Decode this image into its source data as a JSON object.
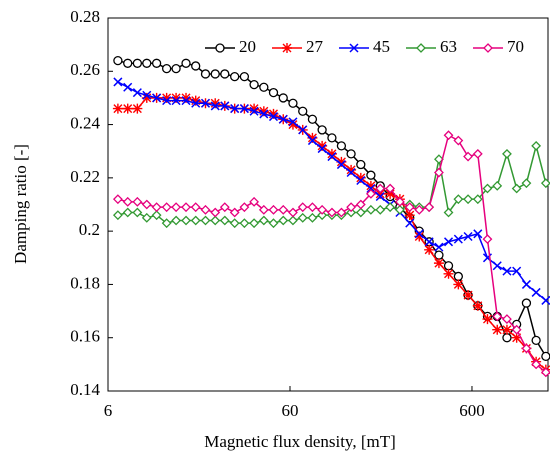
{
  "chart_data": {
    "type": "line",
    "xlabel": "Magnetic flux density, [mT]",
    "ylabel": "Damping ratio [-]",
    "xscale": "log",
    "xlim": [
      6,
      1570
    ],
    "xticks": [
      6,
      60,
      600
    ],
    "ylim": [
      0.14,
      0.28
    ],
    "yticks": [
      0.14,
      0.16,
      0.18,
      0.2,
      0.22,
      0.24,
      0.26,
      0.28
    ],
    "legend": "top",
    "x": [
      6.8,
      7.7,
      8.7,
      9.8,
      11.1,
      12.6,
      14.2,
      16.1,
      18.2,
      20.6,
      23.3,
      26.3,
      29.8,
      33.7,
      38.1,
      43.1,
      48.7,
      55.1,
      62.3,
      70.5,
      79.7,
      90.1,
      102,
      115,
      130,
      147,
      167,
      188,
      213,
      241,
      273,
      308,
      349,
      395,
      446,
      505,
      571,
      646,
      730,
      826,
      934,
      1056,
      1195,
      1351,
      1528
    ],
    "series": [
      {
        "name": "20",
        "color": "#000000",
        "marker": "circle",
        "values": [
          0.264,
          0.263,
          0.263,
          0.263,
          0.263,
          0.261,
          0.261,
          0.263,
          0.262,
          0.259,
          0.259,
          0.259,
          0.258,
          0.258,
          0.255,
          0.254,
          0.252,
          0.25,
          0.248,
          0.245,
          0.242,
          0.238,
          0.235,
          0.232,
          0.229,
          0.225,
          0.221,
          0.217,
          0.213,
          0.209,
          0.205,
          0.2,
          0.196,
          0.191,
          0.187,
          0.183,
          0.176,
          0.172,
          0.168,
          0.168,
          0.16,
          0.165,
          0.173,
          0.159,
          0.153
        ]
      },
      {
        "name": "27",
        "color": "#ff0000",
        "marker": "star",
        "values": [
          0.246,
          0.246,
          0.246,
          0.25,
          0.25,
          0.25,
          0.25,
          0.25,
          0.249,
          0.248,
          0.248,
          0.247,
          0.246,
          0.246,
          0.246,
          0.245,
          0.244,
          0.242,
          0.24,
          0.238,
          0.235,
          0.232,
          0.229,
          0.226,
          0.223,
          0.22,
          0.217,
          0.214,
          0.214,
          0.212,
          0.206,
          0.198,
          0.193,
          0.188,
          0.184,
          0.18,
          0.176,
          0.172,
          0.167,
          0.163,
          0.163,
          0.16,
          0.156,
          0.151,
          0.148
        ]
      },
      {
        "name": "45",
        "color": "#0000ff",
        "marker": "x",
        "values": [
          0.256,
          0.254,
          0.252,
          0.251,
          0.25,
          0.249,
          0.249,
          0.249,
          0.248,
          0.248,
          0.247,
          0.247,
          0.246,
          0.246,
          0.245,
          0.244,
          0.243,
          0.242,
          0.241,
          0.238,
          0.234,
          0.231,
          0.228,
          0.225,
          0.222,
          0.219,
          0.216,
          0.213,
          0.21,
          0.207,
          0.203,
          0.199,
          0.196,
          0.194,
          0.196,
          0.197,
          0.198,
          0.199,
          0.19,
          0.187,
          0.185,
          0.185,
          0.18,
          0.177,
          0.174
        ]
      },
      {
        "name": "63",
        "color": "#339933",
        "marker": "diamond",
        "values": [
          0.206,
          0.207,
          0.207,
          0.205,
          0.206,
          0.203,
          0.204,
          0.204,
          0.204,
          0.204,
          0.204,
          0.204,
          0.203,
          0.203,
          0.203,
          0.204,
          0.203,
          0.204,
          0.204,
          0.205,
          0.205,
          0.206,
          0.206,
          0.206,
          0.207,
          0.207,
          0.208,
          0.208,
          0.209,
          0.208,
          0.21,
          0.209,
          0.209,
          0.227,
          0.207,
          0.212,
          0.212,
          0.212,
          0.216,
          0.217,
          0.229,
          0.216,
          0.218,
          0.232,
          0.218
        ]
      },
      {
        "name": "70",
        "color": "#e6007e",
        "marker": "diamond",
        "values": [
          0.212,
          0.211,
          0.211,
          0.21,
          0.209,
          0.209,
          0.209,
          0.209,
          0.209,
          0.208,
          0.207,
          0.209,
          0.207,
          0.209,
          0.211,
          0.208,
          0.208,
          0.208,
          0.207,
          0.209,
          0.209,
          0.208,
          0.207,
          0.207,
          0.209,
          0.21,
          0.214,
          0.216,
          0.216,
          0.211,
          0.209,
          0.208,
          0.209,
          0.222,
          0.236,
          0.234,
          0.228,
          0.229,
          0.197,
          0.168,
          0.167,
          0.163,
          0.156,
          0.15,
          0.147
        ]
      }
    ]
  }
}
